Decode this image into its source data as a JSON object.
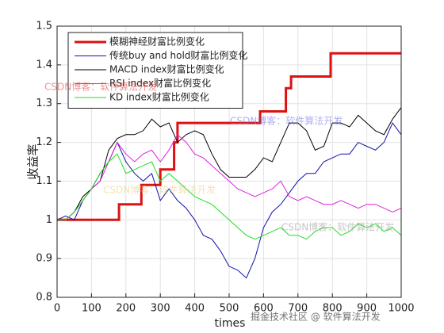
{
  "chart_data": {
    "type": "line",
    "x_label": "times",
    "y_label": "收益率",
    "xlim": [
      0,
      1000
    ],
    "ylim": [
      0.8,
      1.5
    ],
    "xticks": [
      0,
      100,
      200,
      300,
      400,
      500,
      600,
      700,
      800,
      900,
      1000
    ],
    "yticks": [
      0.8,
      0.9,
      1,
      1.1,
      1.2,
      1.3,
      1.4,
      1.5
    ],
    "grid": true,
    "legend": "upper-left",
    "x": [
      0,
      25,
      50,
      75,
      100,
      125,
      150,
      175,
      200,
      225,
      250,
      275,
      300,
      325,
      350,
      375,
      400,
      425,
      450,
      475,
      500,
      525,
      550,
      575,
      600,
      625,
      650,
      675,
      700,
      725,
      750,
      775,
      800,
      825,
      850,
      875,
      900,
      925,
      950,
      975,
      1000
    ],
    "series": [
      {
        "name": "模糊神经财富比例变化",
        "color": "#dd1111",
        "width": 3,
        "x": [
          0,
          180,
          180,
          245,
          245,
          300,
          300,
          340,
          340,
          350,
          350,
          590,
          590,
          665,
          665,
          680,
          680,
          795,
          795,
          1000
        ],
        "values": [
          1.0,
          1.0,
          1.04,
          1.04,
          1.09,
          1.09,
          1.13,
          1.13,
          1.2,
          1.2,
          1.25,
          1.25,
          1.28,
          1.28,
          1.34,
          1.34,
          1.37,
          1.37,
          1.43,
          1.43
        ]
      },
      {
        "name": "传统buy and hold财富比例变化",
        "color": "#1010aa",
        "width": 1,
        "values": [
          1.0,
          1.01,
          1.0,
          1.05,
          1.08,
          1.12,
          1.15,
          1.2,
          1.15,
          1.12,
          1.1,
          1.12,
          1.05,
          1.08,
          1.05,
          1.03,
          1.0,
          0.96,
          0.95,
          0.92,
          0.88,
          0.87,
          0.85,
          0.9,
          0.98,
          1.02,
          1.04,
          1.07,
          1.1,
          1.12,
          1.12,
          1.15,
          1.16,
          1.17,
          1.17,
          1.2,
          1.19,
          1.18,
          1.2,
          1.25,
          1.22
        ]
      },
      {
        "name": "MACD index财富比例变化",
        "color": "#000000",
        "width": 1,
        "values": [
          1.0,
          1.0,
          1.02,
          1.06,
          1.08,
          1.1,
          1.18,
          1.21,
          1.22,
          1.22,
          1.23,
          1.26,
          1.24,
          1.25,
          1.2,
          1.22,
          1.23,
          1.22,
          1.17,
          1.13,
          1.11,
          1.11,
          1.11,
          1.13,
          1.16,
          1.15,
          1.2,
          1.25,
          1.25,
          1.23,
          1.18,
          1.19,
          1.25,
          1.25,
          1.24,
          1.27,
          1.25,
          1.23,
          1.22,
          1.26,
          1.29
        ]
      },
      {
        "name": "RSI index财富比例变化",
        "color": "#e020e0",
        "width": 1,
        "values": [
          1.0,
          1.0,
          1.02,
          1.05,
          1.08,
          1.1,
          1.15,
          1.2,
          1.17,
          1.15,
          1.17,
          1.18,
          1.15,
          1.18,
          1.22,
          1.2,
          1.17,
          1.16,
          1.14,
          1.12,
          1.1,
          1.08,
          1.07,
          1.06,
          1.07,
          1.08,
          1.1,
          1.06,
          1.05,
          1.06,
          1.05,
          1.04,
          1.04,
          1.05,
          1.04,
          1.03,
          1.04,
          1.04,
          1.03,
          1.02,
          1.03
        ]
      },
      {
        "name": "KD index财富比例变化",
        "color": "#22dd22",
        "width": 1,
        "values": [
          1.0,
          1.0,
          1.02,
          1.05,
          1.08,
          1.12,
          1.15,
          1.17,
          1.12,
          1.13,
          1.14,
          1.15,
          1.1,
          1.12,
          1.1,
          1.08,
          1.06,
          1.05,
          1.04,
          1.02,
          1.0,
          0.98,
          0.96,
          0.95,
          0.96,
          0.97,
          0.98,
          0.96,
          0.96,
          0.95,
          0.97,
          0.98,
          0.98,
          0.96,
          0.97,
          0.99,
          0.98,
          0.99,
          0.97,
          0.98,
          0.96
        ]
      }
    ],
    "watermarks": [
      "CSDN博客：软件算法开发",
      "CSDN博客：软件算法开发",
      "CSDN博客：软件算法开发",
      "CSDN博客：软件算法开发",
      "掘金技术社区 @ 软件算法开发"
    ]
  }
}
